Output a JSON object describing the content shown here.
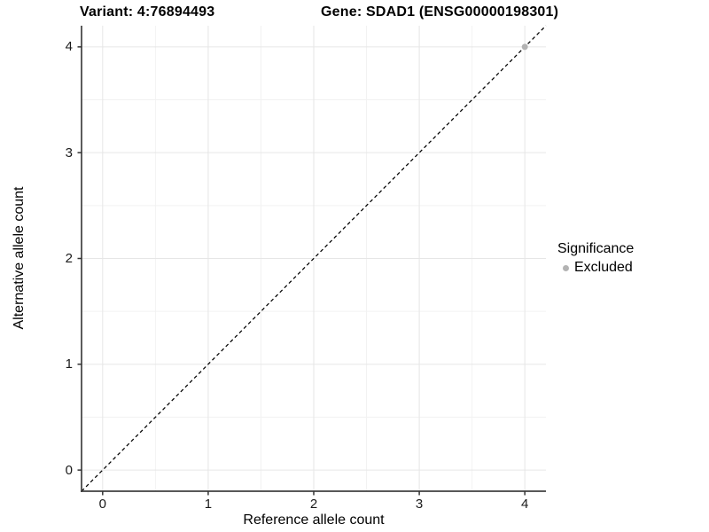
{
  "chart_data": {
    "type": "scatter",
    "title_left": "Variant: 4:76894493",
    "title_right": "Gene: SDAD1 (ENSG00000198301)",
    "xlabel": "Reference allele count",
    "ylabel": "Alternative allele count",
    "xlim": [
      -0.2,
      4.2
    ],
    "ylim": [
      -0.2,
      4.2
    ],
    "xticks": [
      0,
      1,
      2,
      3,
      4
    ],
    "yticks": [
      0,
      1,
      2,
      3,
      4
    ],
    "xminor": [
      0.5,
      1.5,
      2.5,
      3.5
    ],
    "yminor": [
      0.5,
      1.5,
      2.5,
      3.5
    ],
    "grid": {
      "shown": true,
      "major_color": "#e6e6e6",
      "minor_color": "#f2f2f2"
    },
    "series": [
      {
        "name": "Excluded",
        "color": "#b3b3b3",
        "marker_radius": 3.5,
        "points": [
          [
            4,
            4
          ]
        ]
      }
    ],
    "reference_line": {
      "kind": "abline",
      "slope": 1,
      "intercept": 0,
      "linestyle": "dashed",
      "color": "#000000"
    },
    "legend": {
      "title": "Significance",
      "position": "right",
      "items": [
        {
          "label": "Excluded",
          "color": "#b3b3b3"
        }
      ]
    },
    "colors": {
      "background": "#ffffff",
      "axis_line": "#404040",
      "tick_mark": "#333333",
      "tick_text": "#1a1a1a",
      "title_text": "#000000"
    }
  }
}
